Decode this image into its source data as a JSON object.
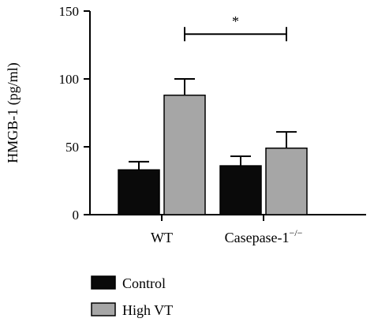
{
  "chart_data": {
    "type": "bar",
    "title": "",
    "xlabel": "",
    "ylabel": "HMGB-1 (pg/ml)",
    "ylim": [
      0,
      150
    ],
    "yticks": [
      "0",
      "50",
      "100",
      "150"
    ],
    "categories": [
      {
        "main": "WT",
        "sup": ""
      },
      {
        "main": "Casepase-1",
        "sup": "−/−"
      }
    ],
    "series": [
      {
        "name": "Control",
        "color": "#0a0a0a",
        "values": [
          33,
          36
        ],
        "errors": [
          6,
          7
        ]
      },
      {
        "name": "High VT",
        "color": "#a6a6a6",
        "values": [
          88,
          49
        ],
        "errors": [
          12,
          12
        ]
      }
    ],
    "significance": [
      {
        "label": "*",
        "from_category": 0,
        "to_category": 1,
        "level": 133
      }
    ],
    "legend_position": "bottom-left"
  }
}
